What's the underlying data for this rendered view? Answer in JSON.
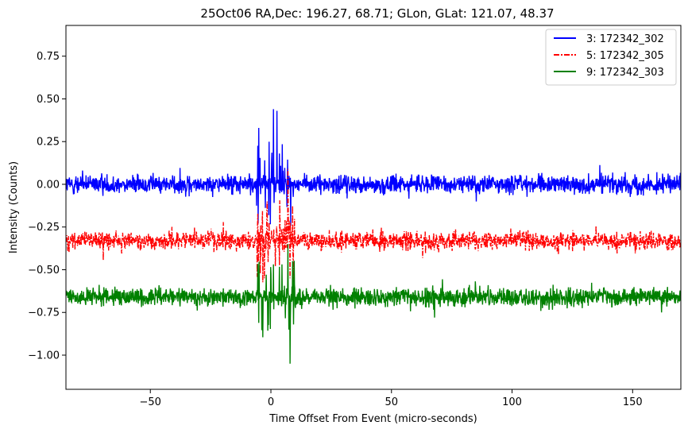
{
  "chart_data": {
    "type": "line",
    "title": "25Oct06 RA,Dec:  196.27,  68.71; GLon, GLat:  121.07,  48.37",
    "xlabel": "Time Offset From Event (micro-seconds)",
    "ylabel": "Intensity (Counts)",
    "xlim": [
      -85,
      170
    ],
    "ylim": [
      -1.2,
      0.93
    ],
    "x_ticks": [
      -50,
      0,
      50,
      100,
      150
    ],
    "x_tick_labels": [
      "−50",
      "0",
      "50",
      "100",
      "150"
    ],
    "y_ticks": [
      0.75,
      0.5,
      0.25,
      0.0,
      -0.25,
      -0.5,
      -0.75,
      -1.0
    ],
    "y_tick_labels": [
      "0.75",
      "0.50",
      "0.25",
      "0.00",
      "−0.25",
      "−0.50",
      "−0.75",
      "−1.00"
    ],
    "grid": false,
    "legend_position": "top-right",
    "series": [
      {
        "name": "3: 172342_302",
        "color": "#0000ff",
        "style": "solid",
        "baseline": 0.0,
        "noise_amplitude": 0.06,
        "spikes": [
          {
            "x": -5,
            "value": 0.33
          },
          {
            "x": -4.5,
            "value": -0.25
          },
          {
            "x": 1,
            "value": 0.44
          },
          {
            "x": 2.5,
            "value": 0.43
          },
          {
            "x": 3.5,
            "value": 0.3
          },
          {
            "x": 4,
            "value": -0.2
          }
        ]
      },
      {
        "name": "5: 172342_305",
        "color": "#ff0000",
        "style": "dashdot",
        "baseline": -0.33,
        "noise_amplitude": 0.06,
        "spikes": [
          {
            "x": 0,
            "value": 0.02
          },
          {
            "x": 7,
            "value": 0.09
          },
          {
            "x": 8,
            "value": -0.55
          },
          {
            "x": 9,
            "value": 0.1
          }
        ]
      },
      {
        "name": "9: 172342_303",
        "color": "#008000",
        "style": "solid",
        "baseline": -0.66,
        "noise_amplitude": 0.06,
        "spikes": [
          {
            "x": 0,
            "value": -1.09
          },
          {
            "x": 1,
            "value": -0.35
          },
          {
            "x": 6,
            "value": -1.1
          },
          {
            "x": 7,
            "value": -0.35
          },
          {
            "x": 8,
            "value": -1.05
          },
          {
            "x": 9,
            "value": -0.45
          }
        ]
      }
    ]
  }
}
